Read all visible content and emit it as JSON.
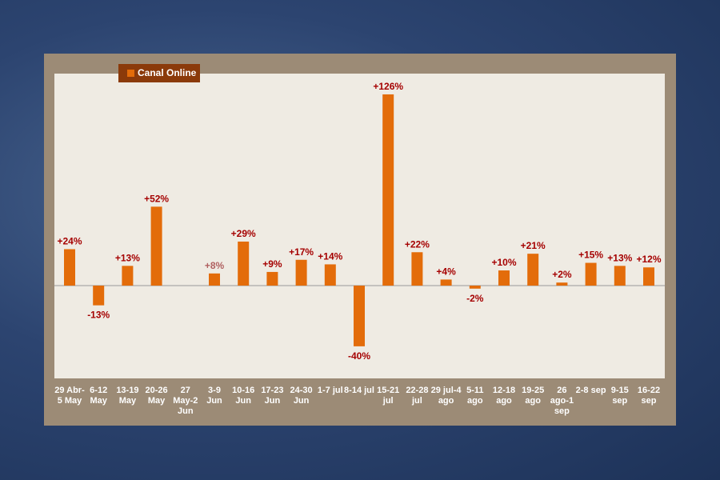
{
  "chart_data": {
    "type": "bar",
    "series": [
      {
        "name": "Canal Online",
        "color": "#e36c0a",
        "values": [
          24,
          -13,
          13,
          52,
          null,
          8,
          29,
          9,
          17,
          14,
          -40,
          126,
          22,
          4,
          -2,
          10,
          21,
          2,
          15,
          13,
          12
        ],
        "value_labels": [
          "+24%",
          "-13%",
          "+13%",
          "+52%",
          null,
          "+8%",
          "+29%",
          "+9%",
          "+17%",
          "+14%",
          "-40%",
          "+126%",
          "+22%",
          "+4%",
          "-2%",
          "+10%",
          "+21%",
          "+2%",
          "+15%",
          "+13%",
          "+12%"
        ]
      }
    ],
    "categories": [
      "29 Abr-5 May",
      "6-12 May",
      "13-19 May",
      "20-26 May",
      "27 May-2 Jun",
      "3-9 Jun",
      "10-16 Jun",
      "17-23 Jun",
      "24-30 Jun",
      "1-7 jul",
      "8-14 jul",
      "15-21 jul",
      "22-28 jul",
      "29 jul-4 ago",
      "5-11 ago",
      "12-18 ago",
      "19-25 ago",
      "26 ago-1 sep",
      "2-8 sep",
      "9-15 sep",
      "16-22 sep"
    ]
  }
}
